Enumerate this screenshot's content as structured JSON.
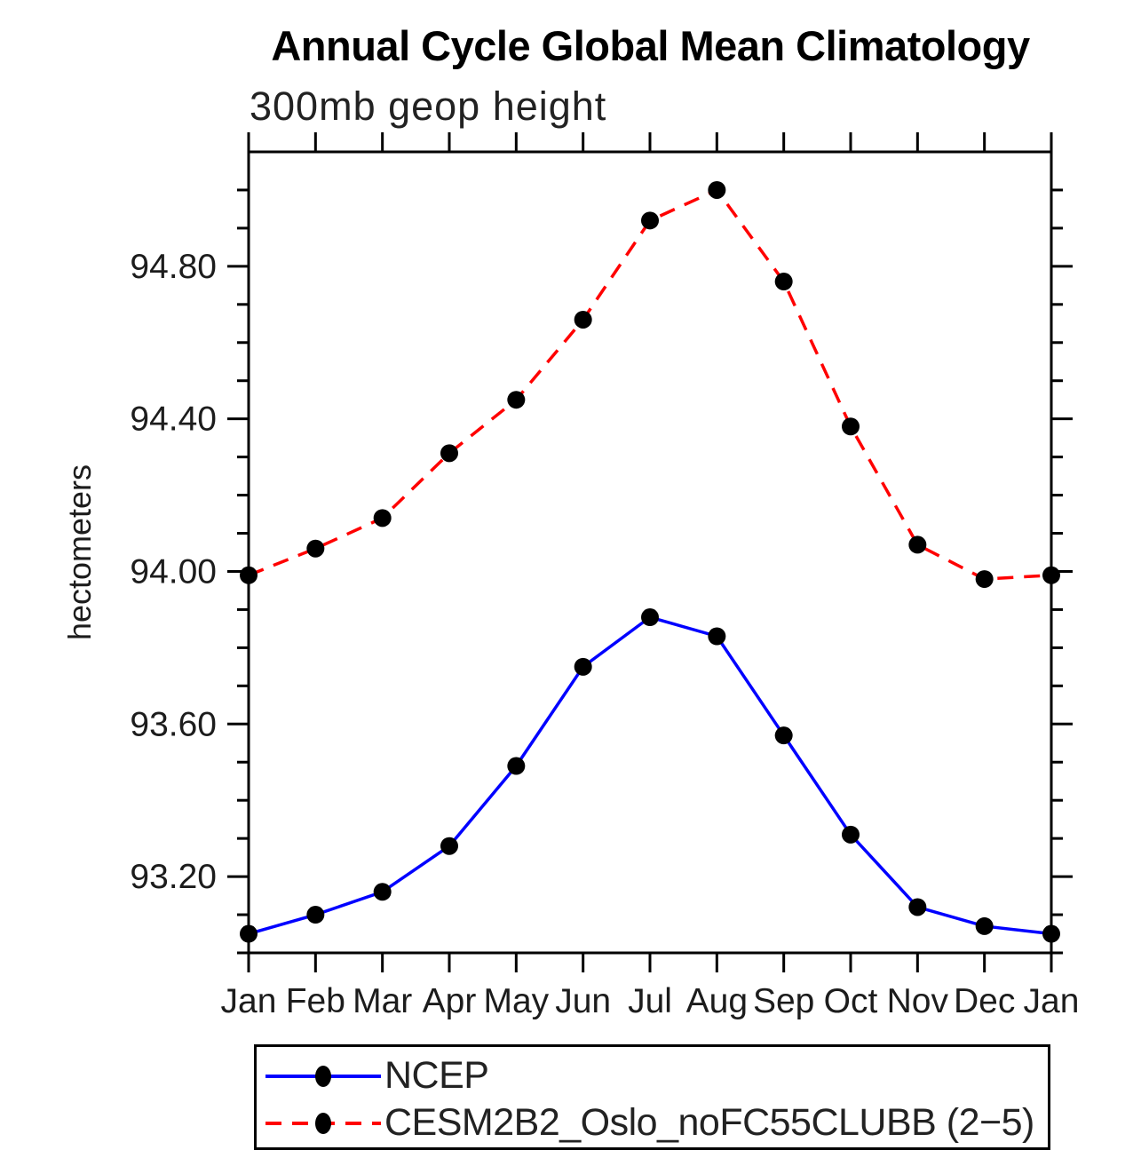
{
  "title": "Annual Cycle Global Mean Climatology",
  "subtitle": "300mb geop height",
  "ylabel": "hectometers",
  "colors": {
    "axis": "#000000",
    "marker": "#000000",
    "ncep_line": "#0000ff",
    "cesm_line": "#ff0000",
    "text": "#1c1c1c"
  },
  "legend": {
    "entries": [
      {
        "label": "NCEP",
        "color": "#0000ff",
        "style": "solid"
      },
      {
        "label": "CESM2B2_Oslo_noFC55CLUBB (2−5)",
        "color": "#ff0000",
        "style": "dashed"
      }
    ]
  },
  "chart_data": {
    "type": "line",
    "title": "Annual Cycle Global Mean Climatology",
    "subtitle": "300mb geop height",
    "xlabel": "",
    "ylabel": "hectometers",
    "categories": [
      "Jan",
      "Feb",
      "Mar",
      "Apr",
      "May",
      "Jun",
      "Jul",
      "Aug",
      "Sep",
      "Oct",
      "Nov",
      "Dec",
      "Jan"
    ],
    "series": [
      {
        "name": "NCEP",
        "color": "#0000ff",
        "line": "solid",
        "marker": "filled-circle",
        "values": [
          93.05,
          93.1,
          93.16,
          93.28,
          93.49,
          93.75,
          93.88,
          93.83,
          93.57,
          93.31,
          93.12,
          93.07,
          93.05
        ]
      },
      {
        "name": "CESM2B2_Oslo_noFC55CLUBB (2−5)",
        "color": "#ff0000",
        "line": "dashed",
        "marker": "filled-circle",
        "values": [
          93.99,
          94.06,
          94.14,
          94.31,
          94.45,
          94.66,
          94.92,
          95.0,
          94.76,
          94.38,
          94.07,
          93.98,
          93.99
        ]
      }
    ],
    "ylim": [
      93.0,
      95.1
    ],
    "y_major_ticks": [
      93.2,
      93.6,
      94.0,
      94.4,
      94.8
    ],
    "y_minor_step": 0.1,
    "grid": false,
    "legend_position": "bottom"
  }
}
